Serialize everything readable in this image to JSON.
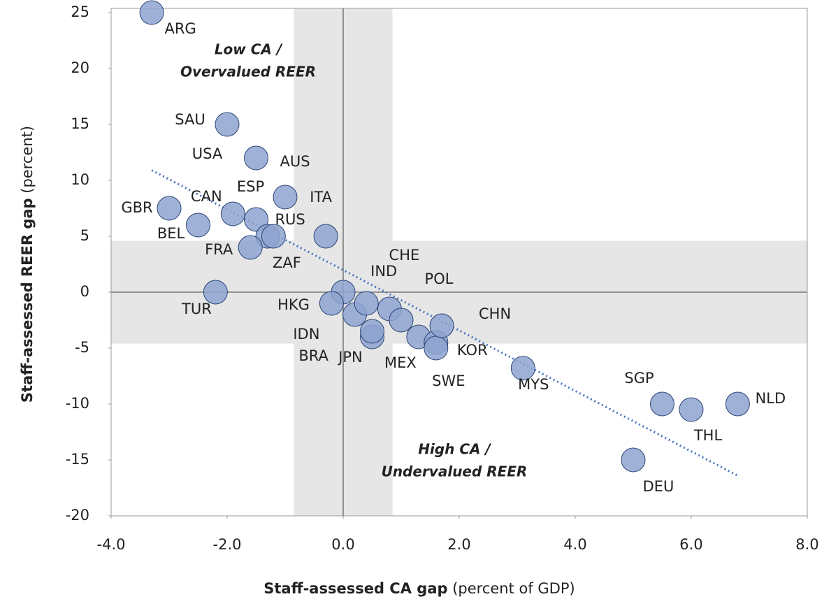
{
  "chart_data": {
    "type": "scatter",
    "x_label": {
      "bold": "Staff-assessed CA gap",
      "normal": "(percent of GDP)"
    },
    "y_label": {
      "bold": "Staff-assessed REER gap",
      "normal": "(percent)"
    },
    "annotations": [
      {
        "lines": [
          "Low CA /",
          "Overvalued REER"
        ],
        "color": "#c00000"
      },
      {
        "lines": [
          "High CA /",
          "Undervalued REER"
        ],
        "color": "#1f3a6e"
      }
    ],
    "labels": [
      "ARG",
      "SAU",
      "USA",
      "AUS",
      "GBR",
      "CAN",
      "ESP",
      "BEL",
      "RUS",
      "ZAF",
      "FRA",
      "ITA",
      "TUR",
      "HKG",
      "IDN",
      "BRA",
      "IND",
      "CHE",
      "JPN",
      null,
      "POL",
      "MEX",
      "KOR",
      "SWE",
      "CHN",
      "MYS",
      "SGP",
      "THL",
      "NLD",
      "DEU"
    ],
    "x": [
      -3.3,
      -2.0,
      -1.5,
      -1.0,
      -3.0,
      -1.9,
      -1.5,
      -2.5,
      -1.3,
      -1.2,
      -1.6,
      -0.3,
      -2.2,
      0.0,
      -0.2,
      0.2,
      0.4,
      0.8,
      0.5,
      0.5,
      1.0,
      1.3,
      1.6,
      1.6,
      1.7,
      3.1,
      5.5,
      6.0,
      6.8,
      5.0
    ],
    "values": [
      25,
      15,
      12,
      8.5,
      7.5,
      7,
      6.5,
      6,
      5,
      5,
      4,
      5,
      0,
      0,
      -1,
      -2,
      -1,
      -1.5,
      -4,
      -3.5,
      -2.5,
      -4,
      -4.5,
      -5,
      -3,
      -6.8,
      -10,
      -10.5,
      -10,
      -15
    ],
    "color": "#8ea3cf",
    "trendline": {
      "x": [
        -3.3,
        6.8
      ],
      "y": [
        10.9,
        -16.4
      ],
      "color": "#4472c4"
    },
    "shaded_bands": {
      "x": [
        -0.85,
        0.85
      ],
      "y": [
        -4.6,
        4.6
      ]
    },
    "xlim": [
      -4,
      8
    ],
    "xticks": [
      {
        "value": -4,
        "label": "-4.0"
      },
      {
        "value": -2,
        "label": "-2.0"
      },
      {
        "value": 0,
        "label": "0.0"
      },
      {
        "value": 2,
        "label": "2.0"
      },
      {
        "value": 4,
        "label": "4.0"
      },
      {
        "value": 6,
        "label": "6.0"
      },
      {
        "value": 8,
        "label": "8.0"
      }
    ],
    "ylim": [
      -20,
      25
    ],
    "yticks": [
      -20,
      -15,
      -10,
      -5,
      0,
      5,
      10,
      15,
      20,
      25
    ]
  }
}
